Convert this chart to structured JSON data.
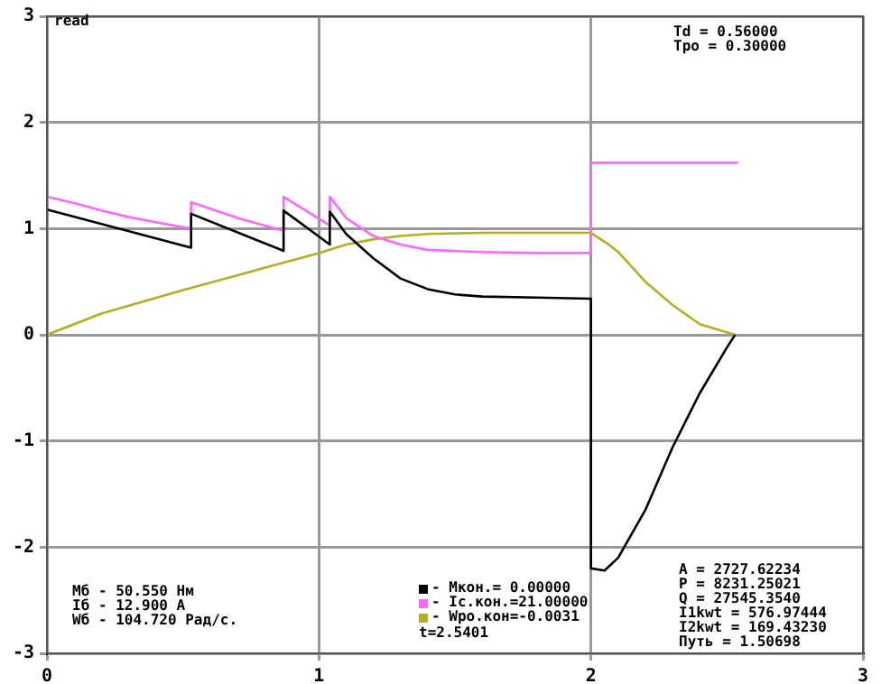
{
  "chart_data": {
    "type": "line",
    "xlim": [
      0,
      3
    ],
    "ylim": [
      -3,
      3
    ],
    "xticks": [
      0,
      1,
      2,
      3
    ],
    "yticks": [
      -3,
      -2,
      -1,
      0,
      1,
      2,
      3
    ],
    "grid": true,
    "legend": "bottom",
    "marker": "none",
    "line_style": "solid",
    "series": [
      {
        "name": "- Мкон.= 0.00000",
        "color": "#000000",
        "x": [
          0,
          0.53,
          0.53,
          0.87,
          0.87,
          1.04,
          1.04,
          1.1,
          1.2,
          1.3,
          1.4,
          1.5,
          1.6,
          1.8,
          2.0,
          2.0,
          2.05,
          2.1,
          2.2,
          2.3,
          2.4,
          2.5,
          2.53
        ],
        "values": [
          1.18,
          0.82,
          1.14,
          0.79,
          1.17,
          0.85,
          1.16,
          0.95,
          0.72,
          0.53,
          0.43,
          0.38,
          0.36,
          0.35,
          0.34,
          -2.2,
          -2.22,
          -2.1,
          -1.65,
          -1.06,
          -0.55,
          -0.12,
          0
        ]
      },
      {
        "name": "- Iс.кон.=21.00000",
        "color": "#ff66ff",
        "x": [
          0,
          0.1,
          0.2,
          0.3,
          0.4,
          0.53,
          0.53,
          0.7,
          0.87,
          0.87,
          1.04,
          1.04,
          1.1,
          1.2,
          1.3,
          1.4,
          1.6,
          1.8,
          2.0,
          2.0,
          2.54
        ],
        "values": [
          1.3,
          1.24,
          1.17,
          1.11,
          1.06,
          1.0,
          1.25,
          1.1,
          0.98,
          1.3,
          1.03,
          1.3,
          1.1,
          0.93,
          0.85,
          0.8,
          0.78,
          0.77,
          0.77,
          1.62,
          1.62
        ]
      },
      {
        "name": "- Wро.кон=-0.0031",
        "color": "#b0b020",
        "x": [
          0,
          0.2,
          0.5,
          0.8,
          1.0,
          1.1,
          1.2,
          1.3,
          1.4,
          1.6,
          2.0,
          2.06,
          2.1,
          2.2,
          2.3,
          2.4,
          2.53
        ],
        "values": [
          0,
          0.2,
          0.42,
          0.63,
          0.77,
          0.85,
          0.9,
          0.93,
          0.95,
          0.96,
          0.96,
          0.86,
          0.78,
          0.5,
          0.28,
          0.1,
          0
        ]
      }
    ],
    "annotations": [
      "read",
      "Td = 0.56000\nTpo = 0.30000",
      "Мб - 50.550 Нм\nIб - 12.900 А\nWб - 104.720 Рад/с.",
      "t=2.5401",
      "A = 2727.62234\nP = 8231.25021\nQ = 27545.3540\nI1kwt = 576.97444\nI2kwt = 169.43230\nПуть = 1.50698"
    ]
  }
}
